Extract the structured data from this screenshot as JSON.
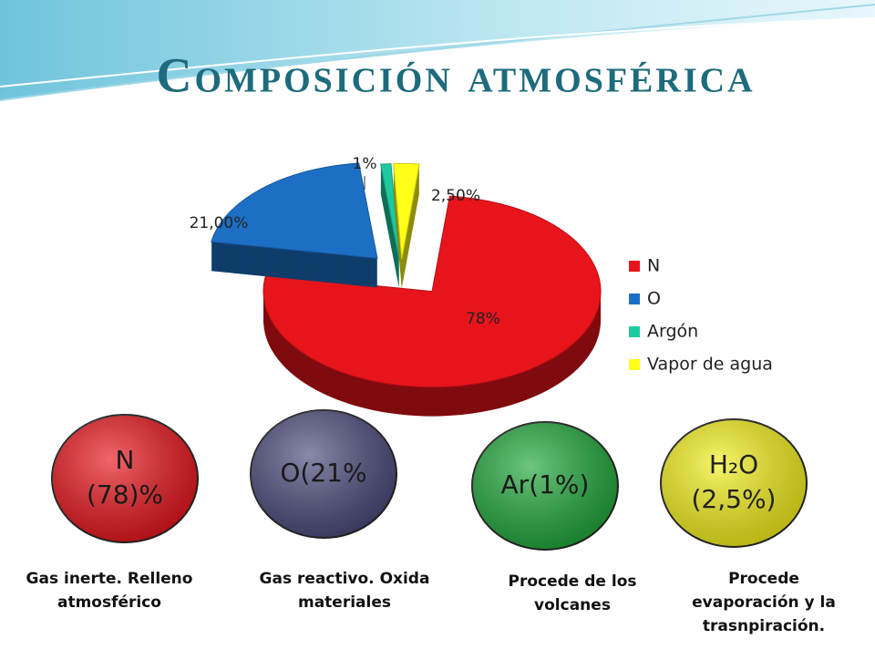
{
  "title": "Composición atmosférica",
  "chart_data": {
    "type": "pie",
    "categories": [
      "N",
      "O",
      "Argón",
      "Vapor de agua"
    ],
    "values": [
      78,
      21,
      1,
      2.5
    ],
    "value_labels": [
      "78%",
      "21,00%",
      "1%",
      "2,50%"
    ],
    "colors": [
      "#e8141b",
      "#1c6fc4",
      "#1fc9a0",
      "#ffff1a"
    ],
    "legend": "right"
  },
  "bubbles": [
    {
      "lines": [
        "N",
        "(78)%"
      ],
      "color": "#e8141b"
    },
    {
      "lines": [
        "O(21%"
      ],
      "color": "#4a4a7c"
    },
    {
      "lines": [
        "Ar(1%)"
      ],
      "color": "#1fa83a"
    },
    {
      "lines": [
        "H₂O",
        "(2,5%)"
      ],
      "color": "#f4f01a"
    }
  ],
  "notes": [
    [
      "Gas inerte. Relleno",
      "atmosférico"
    ],
    [
      "Gas reactivo. Oxida",
      "materiales"
    ],
    [
      "Procede de los",
      "volcanes"
    ],
    [
      "Procede",
      "evaporación y la",
      "trasnpiración."
    ]
  ]
}
